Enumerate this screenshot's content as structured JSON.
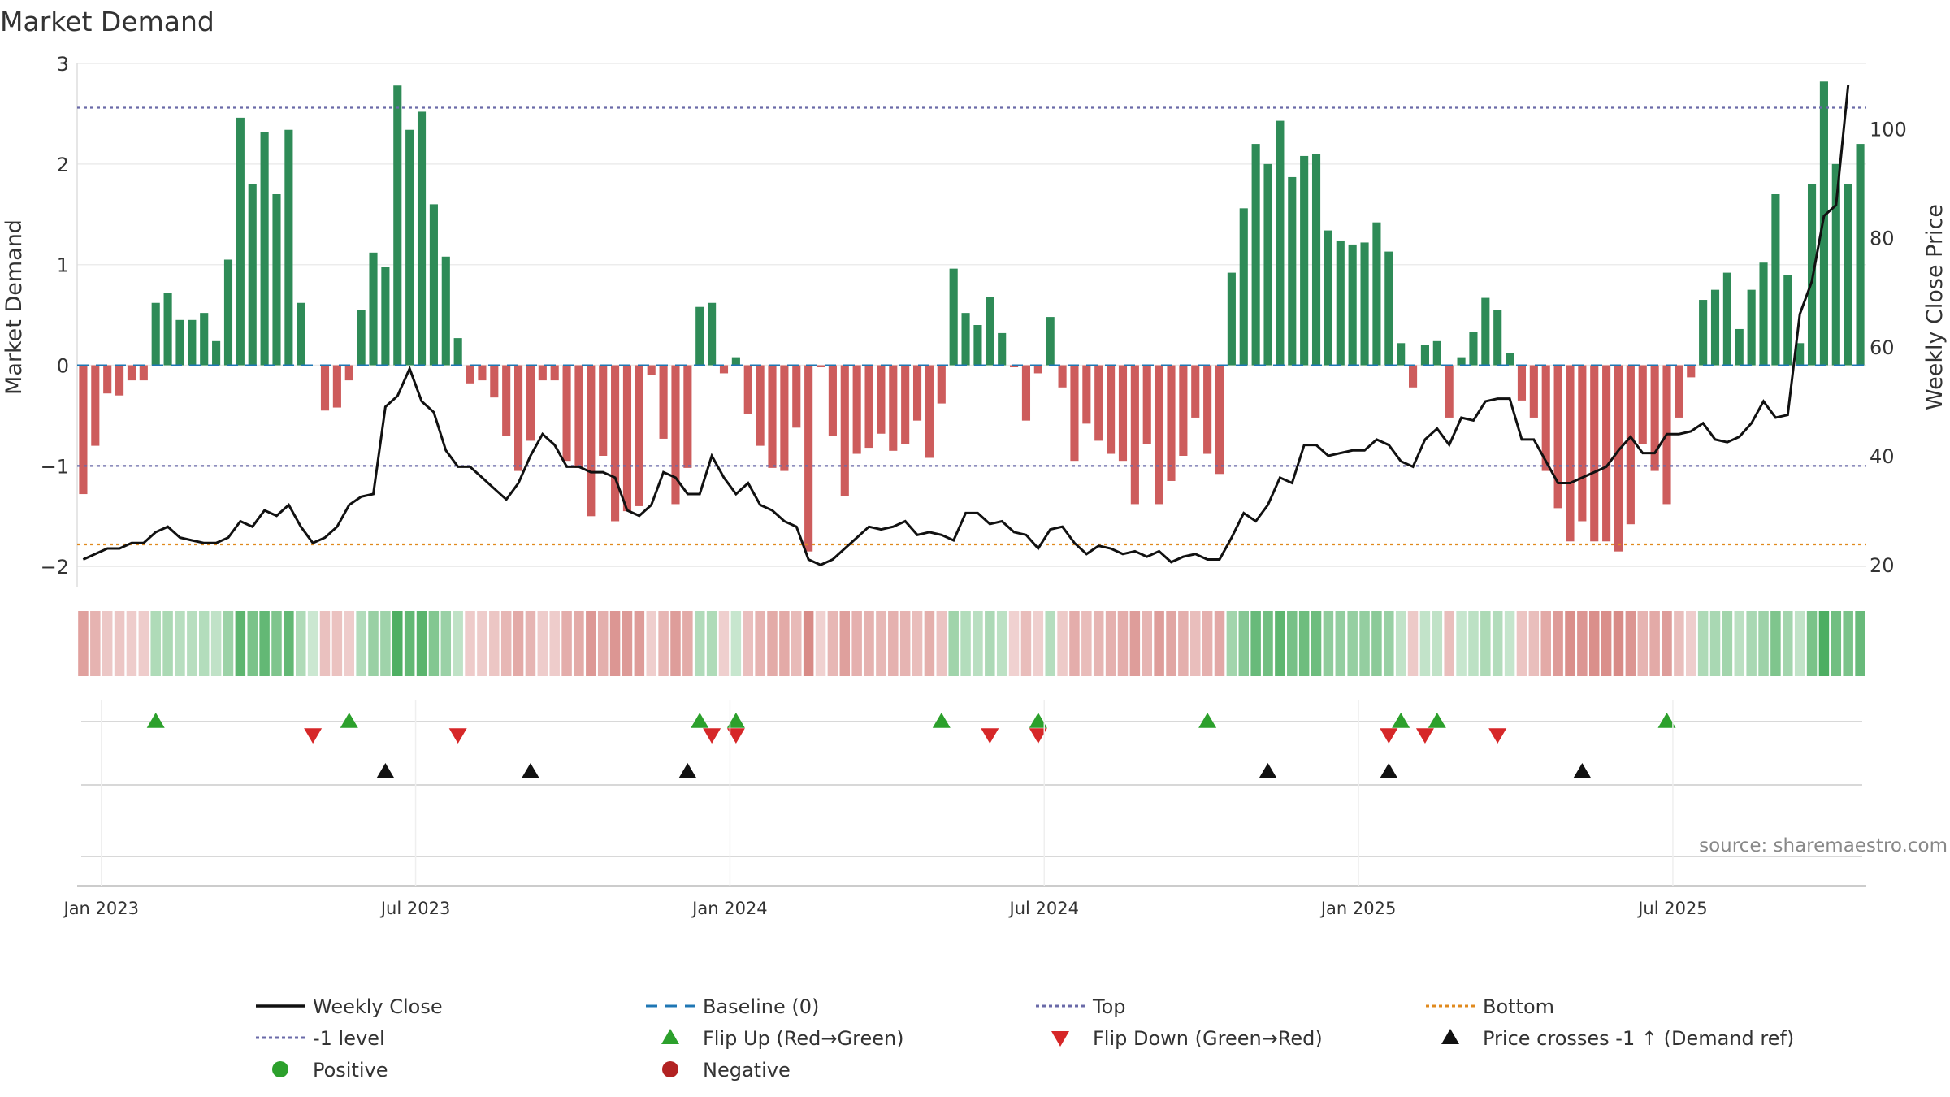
{
  "chart_data": {
    "type": "bar",
    "title": "Market Demand",
    "ylabel_left": "Market Demand",
    "ylabel_right": "Weekly Close Price",
    "source": "source: sharemaestro.com",
    "ylim_left": [
      -2.2,
      3.0
    ],
    "ylim_right": [
      16,
      112
    ],
    "left_ticks": [
      "3",
      "2",
      "1",
      "0",
      "−1",
      "−2"
    ],
    "right_ticks": [
      "100",
      "80",
      "60",
      "40",
      "20"
    ],
    "x_ticks": [
      "Jan 2023",
      "Jul 2023",
      "Jan 2024",
      "Jul 2024",
      "Jan 2025",
      "Jul 2025"
    ],
    "levels": {
      "top": 2.56,
      "minus_one": -1.0,
      "bottom": -1.78,
      "baseline": 0
    },
    "series": [
      {
        "name": "Market Demand",
        "kind": "bar",
        "values": [
          -1.28,
          -0.8,
          -0.28,
          -0.3,
          -0.15,
          -0.15,
          0.62,
          0.72,
          0.45,
          0.45,
          0.52,
          0.24,
          1.05,
          2.46,
          1.8,
          2.32,
          1.7,
          2.34,
          0.62,
          0,
          -0.45,
          -0.42,
          -0.15,
          0.55,
          1.12,
          0.98,
          2.78,
          2.34,
          2.52,
          1.6,
          1.08,
          0.27,
          -0.18,
          -0.15,
          -0.32,
          -0.7,
          -1.05,
          -0.75,
          -0.15,
          -0.15,
          -0.95,
          -1.02,
          -1.5,
          -0.9,
          -1.55,
          -1.45,
          -1.4,
          -0.1,
          -0.73,
          -1.38,
          -1.02,
          0.58,
          0.62,
          -0.08,
          0.08,
          -0.48,
          -0.8,
          -1.02,
          -1.05,
          -0.62,
          -1.85,
          -0.02,
          -0.7,
          -1.3,
          -0.88,
          -0.82,
          -0.68,
          -0.85,
          -0.78,
          -0.55,
          -0.92,
          -0.38,
          0.96,
          0.52,
          0.4,
          0.68,
          0.32,
          -0.02,
          -0.55,
          -0.08,
          0.48,
          -0.22,
          -0.95,
          -0.58,
          -0.75,
          -0.88,
          -0.95,
          -1.38,
          -0.78,
          -1.38,
          -1.15,
          -0.9,
          -0.52,
          -0.88,
          -1.08,
          0.92,
          1.56,
          2.2,
          2.0,
          2.43,
          1.87,
          2.08,
          2.1,
          1.34,
          1.24,
          1.2,
          1.22,
          1.42,
          1.13,
          0.22,
          -0.22,
          0.2,
          0.24,
          -0.52,
          0.08,
          0.33,
          0.67,
          0.55,
          0.12,
          -0.35,
          -0.52,
          -1.05,
          -1.42,
          -1.75,
          -1.55,
          -1.75,
          -1.75,
          -1.85,
          -1.58,
          -0.78,
          -1.05,
          -1.38,
          -0.52,
          -0.12,
          0.65,
          0.75,
          0.92,
          0.36,
          0.75,
          1.02,
          1.7,
          0.9,
          0.22,
          1.8,
          2.82,
          2.0,
          1.8,
          2.2
        ]
      },
      {
        "name": "Weekly Close",
        "kind": "line",
        "axis": "right",
        "values": [
          21,
          22,
          23,
          23,
          24,
          24,
          26,
          27,
          25,
          24.5,
          24,
          24,
          25,
          28,
          27,
          30,
          29,
          31,
          27,
          24,
          25,
          27,
          31,
          32.5,
          33,
          49,
          51,
          56,
          50,
          48,
          41,
          38,
          38,
          36,
          34,
          32,
          35,
          40,
          44,
          42,
          38,
          38,
          37,
          37,
          36,
          30,
          29,
          31,
          37,
          36,
          33,
          33,
          40,
          36,
          33,
          35,
          31,
          30,
          28,
          27,
          21,
          20,
          21,
          23,
          25,
          27,
          26.5,
          27,
          28,
          25.5,
          26,
          25.5,
          24.5,
          29.5,
          29.5,
          27.5,
          28,
          26,
          25.5,
          23,
          26.5,
          27,
          24,
          22,
          23.5,
          23,
          22,
          22.5,
          21.5,
          22.5,
          20.5,
          21.5,
          22,
          21,
          21,
          25,
          29.5,
          28,
          31,
          36,
          35,
          42,
          42,
          40,
          40.5,
          41,
          41,
          43,
          42,
          39,
          38,
          43,
          45,
          42,
          47,
          46.5,
          50,
          50.5,
          50.5,
          43,
          43,
          39,
          35,
          35,
          36,
          37,
          38,
          41,
          43.5,
          40.5,
          40.5,
          44,
          44,
          44.5,
          46,
          43,
          42.5,
          43.5,
          46,
          50,
          47,
          47.5,
          66,
          72,
          84,
          86,
          108
        ]
      }
    ],
    "flip_up_weeks": [
      6,
      22,
      51,
      54,
      71,
      79,
      93,
      109,
      112,
      131
    ],
    "flip_down_weeks": [
      19,
      31,
      52,
      54,
      75,
      79,
      108,
      111,
      117
    ],
    "price_cross_weeks": [
      25,
      37,
      50,
      98,
      108,
      124
    ],
    "legend": [
      {
        "key": "close",
        "label": "Weekly Close"
      },
      {
        "key": "baseline",
        "label": "Baseline (0)"
      },
      {
        "key": "top",
        "label": "Top"
      },
      {
        "key": "bottom",
        "label": "Bottom"
      },
      {
        "key": "minus1",
        "label": "-1 level"
      },
      {
        "key": "flipup",
        "label": "Flip Up (Red→Green)"
      },
      {
        "key": "flipdown",
        "label": "Flip Down (Green→Red)"
      },
      {
        "key": "cross",
        "label": "Price crosses -1 ↑ (Demand ref)"
      },
      {
        "key": "positive",
        "label": "Positive"
      },
      {
        "key": "negative",
        "label": "Negative"
      }
    ],
    "colors": {
      "positive_bar": "#2e8b57",
      "negative_bar": "#cd5c5c",
      "close_line": "#111111",
      "baseline": "#1f77b4",
      "top": "#6a6aa8",
      "minus_one": "#6a6aa8",
      "bottom": "#e08a1e",
      "flip_up": "#2ca02c",
      "flip_down": "#d62728",
      "cross": "#111111",
      "legend_positive": "#2ca02c",
      "legend_negative": "#b22222"
    }
  }
}
